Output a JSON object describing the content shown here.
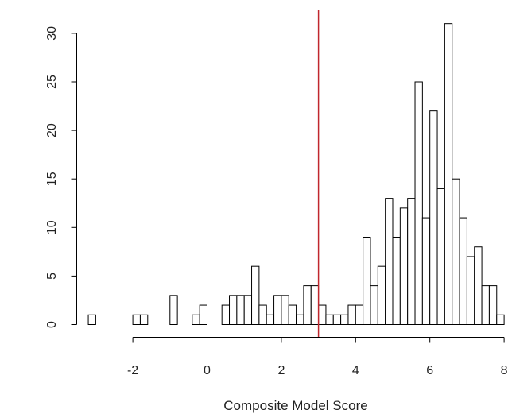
{
  "chart_data": {
    "type": "bar",
    "subtype": "histogram",
    "title": "",
    "xlabel": "Composite Model Score",
    "ylabel": "",
    "bin_width": 0.2,
    "bins_start": [
      -3.2,
      -3.0,
      -2.8,
      -2.6,
      -2.4,
      -2.2,
      -2.0,
      -1.8,
      -1.6,
      -1.4,
      -1.2,
      -1.0,
      -0.8,
      -0.6,
      -0.4,
      -0.2,
      0.0,
      0.2,
      0.4,
      0.6,
      0.8,
      1.0,
      1.2,
      1.4,
      1.6,
      1.8,
      2.0,
      2.2,
      2.4,
      2.6,
      2.8,
      3.0,
      3.2,
      3.4,
      3.6,
      3.8,
      4.0,
      4.2,
      4.4,
      4.6,
      4.8,
      5.0,
      5.2,
      5.4,
      5.6,
      5.8,
      6.0,
      6.2,
      6.4,
      6.6,
      6.8,
      7.0,
      7.2,
      7.4,
      7.6,
      7.8
    ],
    "counts": [
      1,
      0,
      0,
      0,
      0,
      0,
      1,
      1,
      0,
      0,
      0,
      3,
      0,
      0,
      1,
      2,
      0,
      0,
      2,
      3,
      3,
      3,
      6,
      2,
      1,
      3,
      3,
      2,
      1,
      4,
      4,
      2,
      1,
      1,
      1,
      2,
      2,
      9,
      4,
      6,
      13,
      9,
      12,
      13,
      25,
      11,
      22,
      14,
      31,
      15,
      11,
      7,
      8,
      4,
      4,
      1
    ],
    "xlim": [
      -3.2,
      8.0
    ],
    "ylim": [
      0,
      31
    ],
    "x_ticks": [
      "-2",
      "0",
      "2",
      "4",
      "6",
      "8"
    ],
    "y_ticks": [
      "0",
      "5",
      "10",
      "15",
      "20",
      "25",
      "30"
    ],
    "reference_line": {
      "x": 3.0,
      "color": "#c0272d"
    },
    "bar_fill": "#ffffff",
    "bar_stroke": "#000000",
    "grid": false
  }
}
